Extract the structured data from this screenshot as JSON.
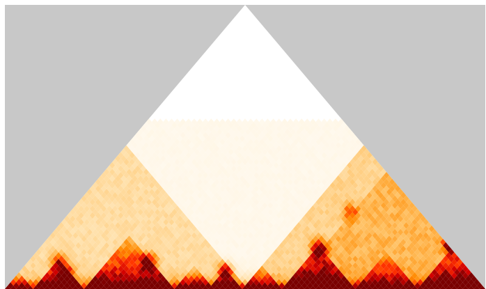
{
  "chart_data": {
    "type": "heatmap",
    "subtype": "hic-contact-triangle",
    "title": "",
    "xlabel": "",
    "ylabel": "",
    "n_bins": 85,
    "depth_bins": 50,
    "colormap": [
      "#ffffff",
      "#ffe6b8",
      "#ffc062",
      "#ff8a00",
      "#ff3300",
      "#d20000",
      "#7a0000"
    ],
    "background_color": "#c8c8c8",
    "decay": {
      "near_diagonal": 0.97,
      "length_scale": 1.6,
      "floor": 0.05
    },
    "domains": [
      {
        "start": 0,
        "end": 4,
        "strength": 0.45
      },
      {
        "start": 5,
        "end": 13,
        "strength": 0.8
      },
      {
        "start": 14,
        "end": 29,
        "strength": 0.7
      },
      {
        "start": 30,
        "end": 36,
        "strength": 0.45
      },
      {
        "start": 36,
        "end": 41,
        "strength": 0.7
      },
      {
        "start": 42,
        "end": 48,
        "strength": 0.5
      },
      {
        "start": 49,
        "end": 61,
        "strength": 0.8
      },
      {
        "start": 62,
        "end": 72,
        "strength": 0.45
      },
      {
        "start": 73,
        "end": 85,
        "strength": 0.65
      }
    ],
    "large_domains": [
      {
        "start": 0,
        "end": 42,
        "strength": 0.16
      },
      {
        "start": 42,
        "end": 85,
        "strength": 0.2
      },
      {
        "start": 50,
        "end": 85,
        "strength": 0.12
      }
    ],
    "hotspots": [
      {
        "i": 49,
        "j": 61,
        "value": 0.95
      },
      {
        "i": 72,
        "j": 85,
        "value": 0.92
      },
      {
        "i": 21,
        "j": 29,
        "value": 0.78
      },
      {
        "i": 36,
        "j": 41,
        "value": 0.75
      },
      {
        "i": 8,
        "j": 13,
        "value": 0.7
      },
      {
        "i": 5,
        "j": 13,
        "value": 0.55
      },
      {
        "i": 49,
        "j": 72,
        "value": 0.35
      }
    ]
  }
}
